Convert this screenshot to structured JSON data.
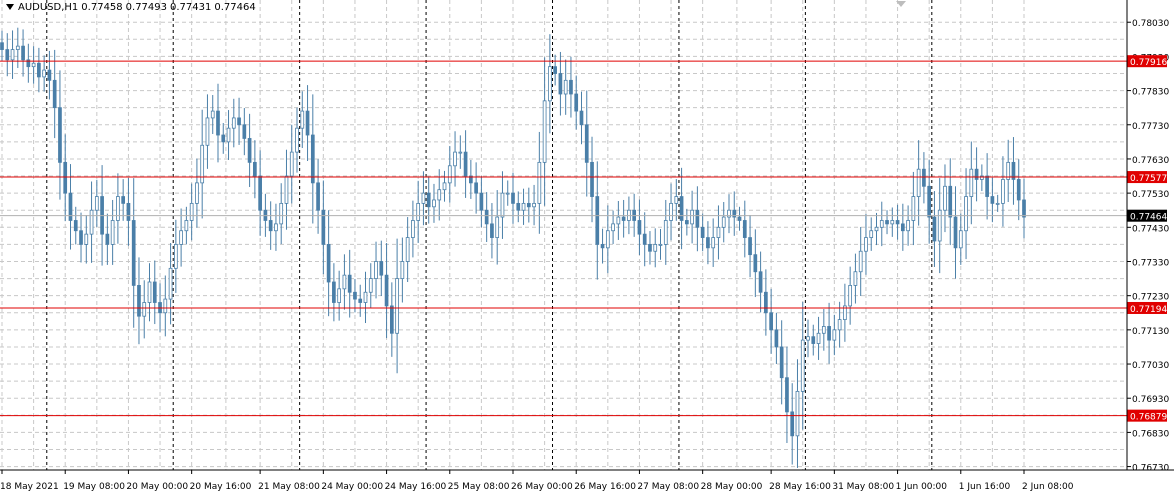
{
  "header": {
    "symbol": "AUDUSD,H1",
    "open": "0.77458",
    "high": "0.77493",
    "low": "0.77431",
    "close": "0.77464"
  },
  "colors": {
    "background": "#ffffff",
    "candle": "#4a7fa8",
    "level_line": "#e00000",
    "level_label_bg": "#e00000",
    "price_label_bg": "#000000",
    "grid": "#c8c8c8",
    "period_separator": "#000000"
  },
  "chart_data": {
    "type": "candlestick",
    "symbol": "AUDUSD",
    "timeframe": "H1",
    "grid": true,
    "ylim": [
      0.7672,
      0.78095
    ],
    "y_ticks": [
      "0.78030",
      "0.77930",
      "0.77830",
      "0.77730",
      "0.77630",
      "0.77530",
      "0.77430",
      "0.77330",
      "0.77230",
      "0.77130",
      "0.77030",
      "0.76930",
      "0.76830",
      "0.76730"
    ],
    "x_ticks": [
      "18 May 2021",
      "19 May 08:00",
      "20 May 00:00",
      "20 May 16:00",
      "21 May 08:00",
      "24 May 00:00",
      "24 May 16:00",
      "25 May 08:00",
      "26 May 00:00",
      "26 May 16:00",
      "27 May 08:00",
      "28 May 00:00",
      "28 May 16:00",
      "31 May 08:00",
      "1 Jun 00:00",
      "1 Jun 16:00",
      "2 Jun 08:00"
    ],
    "horizontal_levels": [
      "0.77916",
      "0.77577",
      "0.77194",
      "0.76879"
    ],
    "current_price": "0.77464",
    "close_series": [
      0.7795,
      0.7792,
      0.7795,
      0.7796,
      0.7792,
      0.779,
      0.7791,
      0.7787,
      0.7789,
      0.7786,
      0.7778,
      0.7762,
      0.7753,
      0.7745,
      0.7742,
      0.7738,
      0.7741,
      0.7748,
      0.7752,
      0.7741,
      0.7738,
      0.7745,
      0.7752,
      0.775,
      0.7745,
      0.7726,
      0.7717,
      0.7721,
      0.7727,
      0.7721,
      0.7718,
      0.7722,
      0.7731,
      0.7738,
      0.7742,
      0.7745,
      0.775,
      0.7756,
      0.7767,
      0.7775,
      0.7777,
      0.777,
      0.7768,
      0.7772,
      0.7775,
      0.7773,
      0.7769,
      0.7762,
      0.7758,
      0.7748,
      0.7745,
      0.7742,
      0.7744,
      0.775,
      0.7758,
      0.7765,
      0.7772,
      0.7777,
      0.777,
      0.7756,
      0.7748,
      0.7738,
      0.7727,
      0.7721,
      0.7725,
      0.7729,
      0.7724,
      0.7722,
      0.7721,
      0.7724,
      0.7728,
      0.7733,
      0.7729,
      0.772,
      0.7712,
      0.7728,
      0.7733,
      0.774,
      0.7745,
      0.775,
      0.7753,
      0.7749,
      0.7751,
      0.7754,
      0.7756,
      0.7761,
      0.7765,
      0.7765,
      0.7758,
      0.7756,
      0.7753,
      0.7748,
      0.7744,
      0.774,
      0.7746,
      0.7753,
      0.7753,
      0.775,
      0.7748,
      0.775,
      0.7749,
      0.775,
      0.7762,
      0.778,
      0.779,
      0.7788,
      0.7782,
      0.7786,
      0.7782,
      0.7777,
      0.7773,
      0.7762,
      0.7752,
      0.7738,
      0.7737,
      0.7742,
      0.7744,
      0.7746,
      0.7745,
      0.7748,
      0.7745,
      0.7741,
      0.7738,
      0.7736,
      0.7738,
      0.7738,
      0.7745,
      0.775,
      0.7752,
      0.7745,
      0.7744,
      0.7748,
      0.7743,
      0.774,
      0.7737,
      0.774,
      0.7743,
      0.7746,
      0.7748,
      0.7746,
      0.7745,
      0.774,
      0.7735,
      0.773,
      0.7724,
      0.7718,
      0.7713,
      0.7708,
      0.7699,
      0.7689,
      0.7682,
      0.7695,
      0.771,
      0.7711,
      0.7709,
      0.7712,
      0.7714,
      0.771,
      0.7713,
      0.7716,
      0.772,
      0.7726,
      0.773,
      0.7736,
      0.774,
      0.7742,
      0.7743,
      0.7745,
      0.7744,
      0.7745,
      0.7744,
      0.7742,
      0.7745,
      0.7752,
      0.776,
      0.7755,
      0.7746,
      0.7739,
      0.7748,
      0.7755,
      0.7746,
      0.7737,
      0.7742,
      0.7752,
      0.776,
      0.7757,
      0.7758,
      0.7752,
      0.775,
      0.775,
      0.7757,
      0.7762,
      0.7757,
      0.7751,
      0.7746
    ]
  }
}
